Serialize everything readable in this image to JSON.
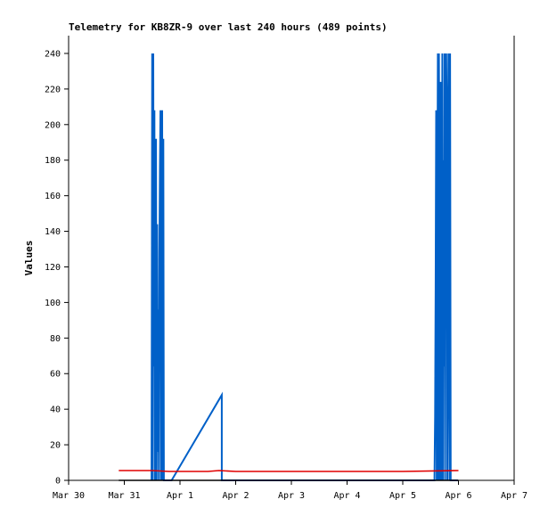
{
  "chart_data": {
    "type": "line",
    "title": "Telemetry for KB8ZR-9 over last 240 hours (489 points)",
    "xlabel": "",
    "ylabel": "Values",
    "x_unit": "days since Mar 30 00:00",
    "xlim": [
      0,
      8
    ],
    "ylim": [
      0,
      250
    ],
    "x_ticks": [
      "Mar 30",
      "Mar 31",
      "Apr 1",
      "Apr 2",
      "Apr 3",
      "Apr 4",
      "Apr 5",
      "Apr 6",
      "Apr 7"
    ],
    "y_ticks": [
      0,
      20,
      40,
      60,
      80,
      100,
      120,
      140,
      160,
      180,
      200,
      220,
      240
    ],
    "grid": false,
    "legend": "none",
    "series": [
      {
        "name": "",
        "color": "#0060c8",
        "x": [
          1.49,
          1.5,
          1.51,
          1.52,
          1.53,
          1.54,
          1.55,
          1.56,
          1.57,
          1.58,
          1.59,
          1.6,
          1.61,
          1.62,
          1.63,
          1.64,
          1.65,
          1.66,
          1.67,
          1.68,
          1.69,
          1.7,
          1.71,
          1.72,
          1.73,
          1.74,
          1.75,
          1.76,
          1.77,
          1.78,
          1.79,
          1.8,
          1.81,
          1.82,
          1.83,
          1.84,
          1.85,
          2.75,
          2.75,
          2.76,
          6.57,
          6.58,
          6.59,
          6.6,
          6.61,
          6.62,
          6.63,
          6.64,
          6.65,
          6.66,
          6.67,
          6.68,
          6.69,
          6.7,
          6.71,
          6.72,
          6.73,
          6.74,
          6.75,
          6.76,
          6.77,
          6.78,
          6.79,
          6.8,
          6.81,
          6.82,
          6.83,
          6.84,
          6.85,
          6.86,
          6.87,
          6.88,
          6.89,
          6.9,
          6.91,
          6.92,
          6.93,
          6.94,
          6.95,
          6.96,
          6.97,
          6.98,
          6.99
        ],
        "y": [
          0,
          240,
          0,
          240,
          64,
          208,
          0,
          32,
          192,
          0,
          144,
          16,
          96,
          0,
          128,
          176,
          208,
          0,
          144,
          208,
          0,
          192,
          0,
          0,
          0,
          0,
          0,
          0,
          0,
          0,
          0,
          0,
          0,
          0,
          0,
          0,
          0,
          48,
          0,
          0,
          0,
          36,
          108,
          208,
          0,
          144,
          240,
          0,
          240,
          128,
          0,
          224,
          160,
          0,
          240,
          0,
          180,
          64,
          240,
          0,
          224,
          240,
          200,
          0,
          176,
          240,
          56,
          0,
          240,
          0,
          0,
          0,
          0,
          0,
          0,
          0,
          0,
          0,
          0,
          0,
          0,
          0,
          0
        ]
      },
      {
        "name": "",
        "color": "#e00000",
        "x": [
          0.9,
          1.5,
          1.8,
          2.0,
          2.5,
          2.7,
          3.0,
          4.0,
          5.0,
          6.0,
          7.0
        ],
        "y": [
          5.5,
          5.5,
          5.0,
          5.0,
          5.0,
          5.5,
          5.0,
          5.0,
          5.0,
          5.0,
          5.5
        ]
      },
      {
        "name": "",
        "color": "#000000",
        "x": [
          0.9,
          7.0
        ],
        "y": [
          0,
          0
        ]
      }
    ]
  }
}
